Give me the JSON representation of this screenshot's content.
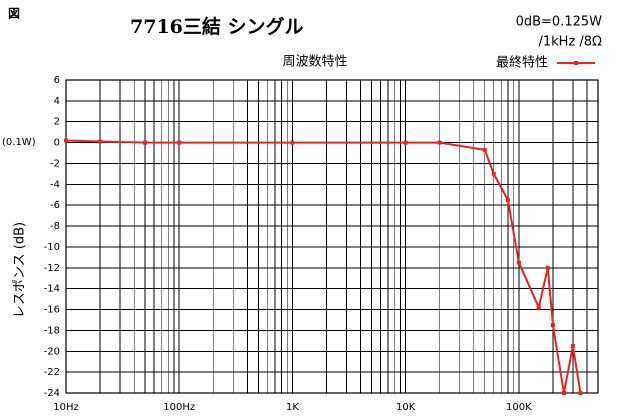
{
  "chart_data": {
    "type": "line",
    "figure_label": "図",
    "title": "7716三結 シングル",
    "notes": [
      "0dB=0.125W",
      "/1kHz /8Ω"
    ],
    "subtitle": "周波数特性",
    "y_label": "レスポンス (dB)",
    "annotation": "(0.1W)",
    "x": [
      10,
      20,
      50,
      100,
      1000,
      10000,
      20000,
      50000,
      60000,
      80000,
      100000,
      150000,
      180000,
      200000,
      250000,
      300000,
      350000
    ],
    "series": [
      {
        "name": "最終特性",
        "color": "#e8231c",
        "values": [
          0.2,
          0.1,
          0,
          0,
          0,
          0,
          0,
          -0.7,
          -3,
          -5.5,
          -11.5,
          -15.8,
          -12,
          -17.5,
          -24,
          -19.5,
          -24
        ]
      }
    ],
    "xscale": "log",
    "xlim": [
      10,
      500000
    ],
    "xticks": [
      {
        "value": 10,
        "label": "10Hz"
      },
      {
        "value": 100,
        "label": "100Hz"
      },
      {
        "value": 1000,
        "label": "1K"
      },
      {
        "value": 10000,
        "label": "10K"
      },
      {
        "value": 100000,
        "label": "100K"
      }
    ],
    "ylim": [
      -24,
      6
    ],
    "yticks": [
      6,
      4,
      2,
      0,
      -2,
      -4,
      -6,
      -8,
      -10,
      -12,
      -14,
      -16,
      -18,
      -20,
      -22,
      -24
    ],
    "grid": true
  }
}
